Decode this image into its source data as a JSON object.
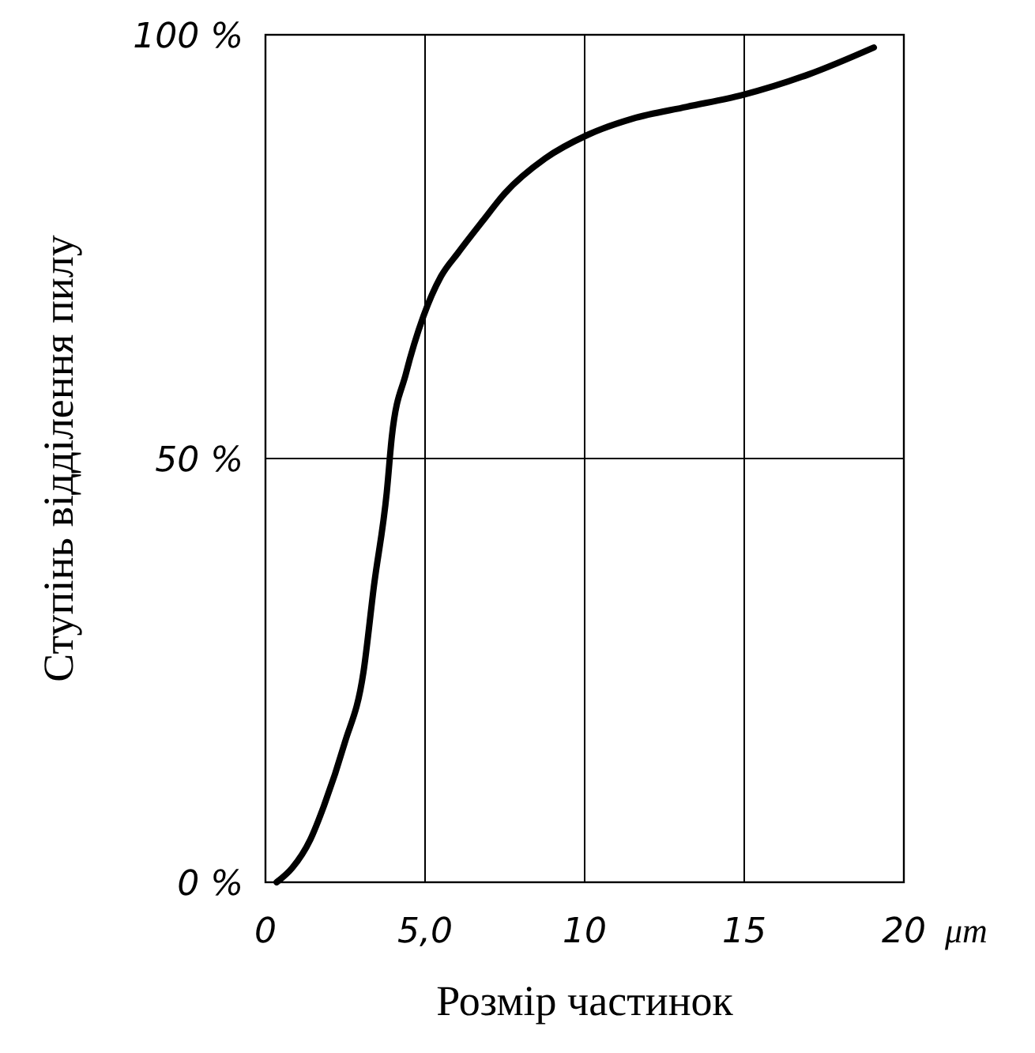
{
  "chart_data": {
    "type": "line",
    "xlabel": "Розмір частинок",
    "ylabel": "Ступінь відділення пилу",
    "annotations": [
      "μm"
    ],
    "xlim": [
      0,
      20
    ],
    "ylim": [
      0,
      100
    ],
    "xticks": [
      0,
      {
        "value": 5,
        "label": "5,0"
      },
      10,
      15,
      20
    ],
    "yticks": [
      {
        "value": 0,
        "label": "0 %"
      },
      {
        "value": 50,
        "label": "50 %"
      },
      {
        "value": 100,
        "label": "100 %"
      }
    ],
    "grid": true,
    "line_style": "solid",
    "marker": "none",
    "series": [
      {
        "color": "#000000",
        "x": [
          0.35,
          0.84,
          1.4,
          1.83,
          2.48,
          3.07,
          3.4,
          3.8,
          3.96,
          4.4,
          4.95,
          5.5,
          6.04,
          6.8,
          7.5,
          8.76,
          10.1,
          11.5,
          13.2,
          14.95,
          17,
          19.06
        ],
        "values": [
          0,
          1.7,
          5,
          9,
          16.4,
          24.8,
          35,
          46,
          52.6,
          60,
          66.8,
          71.5,
          74.3,
          78,
          81.3,
          85.4,
          88.2,
          90.1,
          91.5,
          92.9,
          95.3,
          98.5
        ]
      }
    ]
  }
}
